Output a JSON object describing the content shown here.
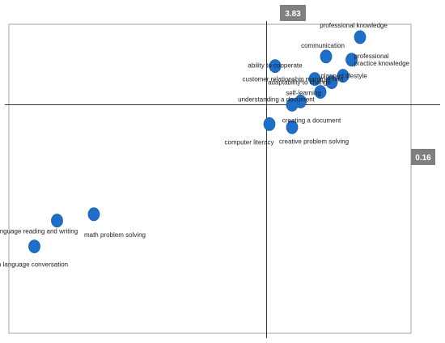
{
  "chart_data": {
    "type": "scatter",
    "title": "",
    "xlabel": "",
    "ylabel": "",
    "xlim": [
      2.92,
      4.34
    ],
    "ylim": [
      -0.55,
      0.41
    ],
    "x_cross": 3.83,
    "y_cross": 0.16,
    "axis_badges": {
      "x_crossing": "3.83",
      "y_crossing": "0.16"
    },
    "marker_color": "#1f6fc9",
    "badge_color": "#7f7f7f",
    "points": [
      {
        "label": "professional knowledge",
        "x": 4.16,
        "y": 0.37
      },
      {
        "label": "communication",
        "x": 4.04,
        "y": 0.31
      },
      {
        "label": "professional practice knowledge",
        "x": 4.13,
        "y": 0.3
      },
      {
        "label": "ability to cooperate",
        "x": 3.86,
        "y": 0.28
      },
      {
        "label": "planned lifestyle",
        "x": 4.1,
        "y": 0.25
      },
      {
        "label": "customer relationship management",
        "x": 4.0,
        "y": 0.24
      },
      {
        "label": "adaptability to change",
        "x": 4.06,
        "y": 0.23
      },
      {
        "label": "self-learning",
        "x": 4.02,
        "y": 0.2
      },
      {
        "label": "understanding a document",
        "x": 3.95,
        "y": 0.17
      },
      {
        "label": "creating a document",
        "x": 3.92,
        "y": 0.16
      },
      {
        "label": "computer literacy",
        "x": 3.84,
        "y": 0.1
      },
      {
        "label": "creative problem solving",
        "x": 3.92,
        "y": 0.09
      },
      {
        "label": "math problem solving",
        "x": 3.22,
        "y": -0.18
      },
      {
        "label": "foreign language reading and writing",
        "x": 3.09,
        "y": -0.2
      },
      {
        "label": "foreign language conversation",
        "x": 3.01,
        "y": -0.28
      }
    ]
  }
}
